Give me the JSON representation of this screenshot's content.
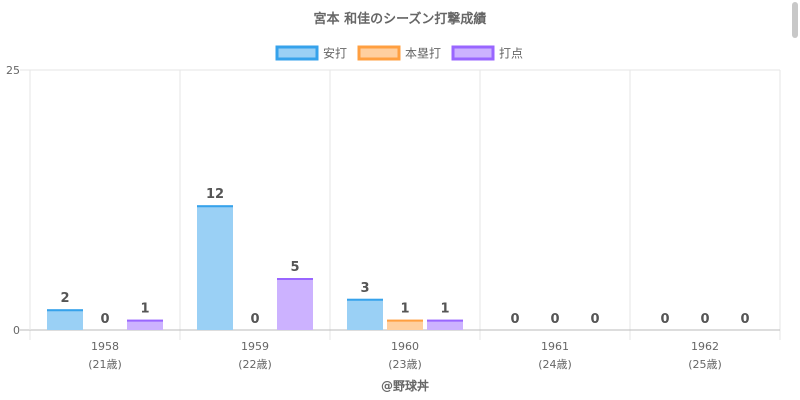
{
  "chart_data": {
    "type": "bar",
    "title": "宮本 和佳のシーズン打撃成績",
    "xlabel": "@野球丼",
    "ylabel": "",
    "categories": [
      "1958",
      "1959",
      "1960",
      "1961",
      "1962"
    ],
    "category_sublabels": [
      "(21歳)",
      "(22歳)",
      "(23歳)",
      "(24歳)",
      "(25歳)"
    ],
    "series": [
      {
        "name": "安打",
        "values": [
          2,
          12,
          3,
          0,
          0
        ],
        "fill": "#9ad0f5",
        "stroke": "#36a2eb"
      },
      {
        "name": "本塁打",
        "values": [
          0,
          0,
          1,
          0,
          0
        ],
        "fill": "#ffcf9f",
        "stroke": "#ff9f40"
      },
      {
        "name": "打点",
        "values": [
          1,
          5,
          1,
          0,
          0
        ],
        "fill": "#ccb2ff",
        "stroke": "#9966ff"
      }
    ],
    "ylim": [
      0,
      25
    ],
    "yticks": [
      0,
      25
    ],
    "legend_position": "top",
    "grid": true,
    "data_labels": true
  }
}
